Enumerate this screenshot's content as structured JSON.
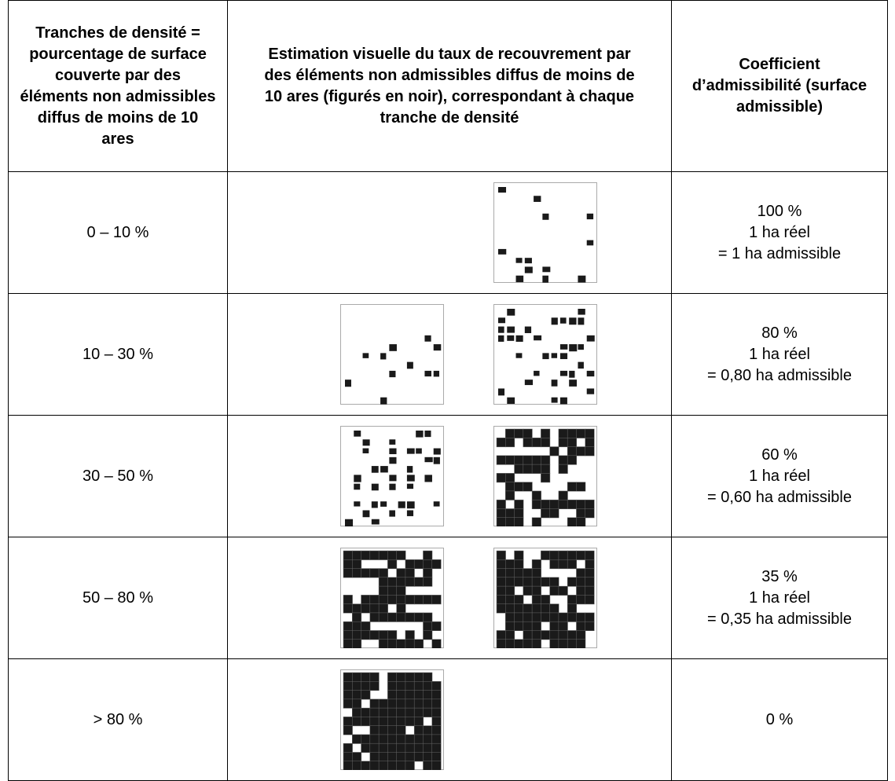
{
  "table": {
    "header": [
      "Tranches de densité = pourcentage de surface couverte par des éléments non admissibles diffus de moins de 10 ares",
      "Estimation visuelle du taux de recouvrement par des éléments non admissibles diffus de moins de 10 ares (figurés en noir), correspondant à chaque tranche de densité",
      "Coefficient d’admissibilité (surface admissible)"
    ],
    "rows": [
      {
        "range": "0 – 10 %",
        "coefficient": [
          "100 %",
          "1 ha réel",
          "= 1 ha admissible"
        ]
      },
      {
        "range": "10 – 30 %",
        "coefficient": [
          "80 %",
          "1 ha réel",
          "= 0,80 ha admissible"
        ]
      },
      {
        "range": "30 – 50 %",
        "coefficient": [
          "60 %",
          "1 ha réel",
          "= 0,60 ha admissible"
        ]
      },
      {
        "range": "50 – 80 %",
        "coefficient": [
          "35 %",
          "1 ha réel",
          "= 0,35 ha admissible"
        ]
      },
      {
        "range": "> 80 %",
        "coefficient": [
          "0 %"
        ]
      }
    ]
  }
}
